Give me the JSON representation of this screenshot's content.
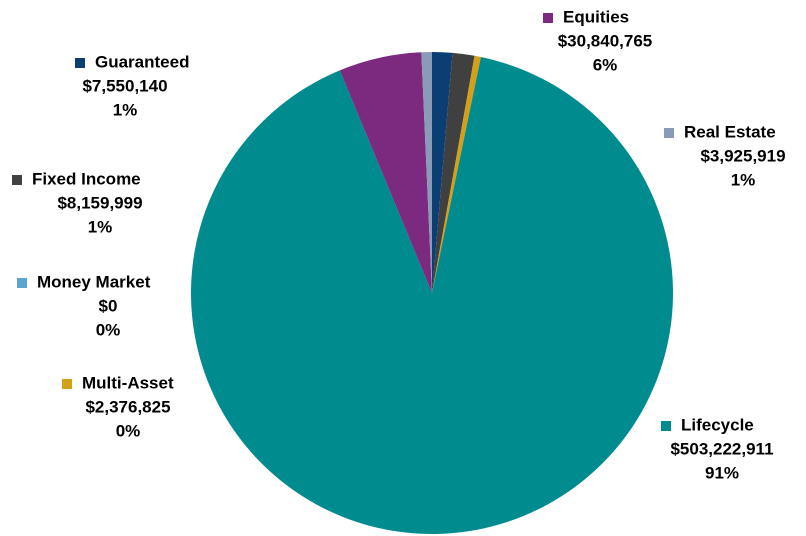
{
  "chart_data": {
    "type": "pie",
    "categories": [
      "Guaranteed",
      "Fixed Income",
      "Multi-Asset",
      "Lifecycle",
      "Equities",
      "Real Estate",
      "Money Market"
    ],
    "values": [
      7550140,
      8159999,
      2376825,
      503222911,
      30840765,
      3925919,
      0
    ],
    "value_labels": [
      "$7,550,140",
      "$8,159,999",
      "$2,376,825",
      "$503,222,911",
      "$30,840,765",
      "$3,925,919",
      "$0"
    ],
    "percent_labels": [
      "1%",
      "1%",
      "0%",
      "91%",
      "6%",
      "1%",
      "0%"
    ],
    "colors": [
      "#0b3f73",
      "#404040",
      "#d4a017",
      "#008b8f",
      "#7b2a7f",
      "#8a9bb8",
      "#5ba3d0"
    ]
  }
}
